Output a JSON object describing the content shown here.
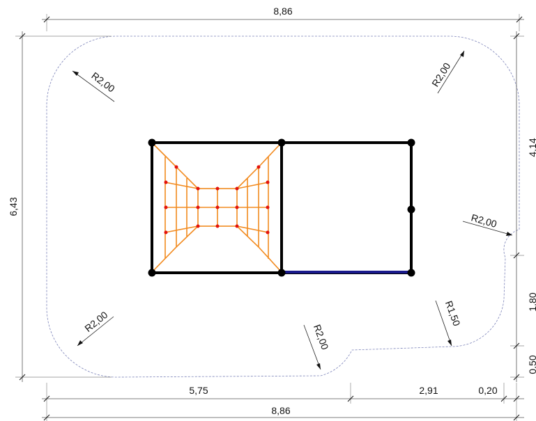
{
  "dimensions": {
    "top_total": "8,86",
    "bottom_total": "8,86",
    "left_height": "6,43",
    "right_upper": "4,14",
    "right_middle": "1,80",
    "right_lower": "0,50",
    "bottom_left": "5,75",
    "bottom_middle": "2,91",
    "bottom_right": "0,20"
  },
  "radii": {
    "top_left": "R2,00",
    "top_right": "R2,00",
    "right_side": "R2,00",
    "bottom_left": "R2,00",
    "bottom_middle": "R2,00",
    "bottom_right": "R1,50"
  },
  "colors": {
    "frame": "#000000",
    "net": "#f28a1e",
    "net_nodes": "#e3120b",
    "beam": "#1a1a8c",
    "boundary": "#7b82b8"
  }
}
